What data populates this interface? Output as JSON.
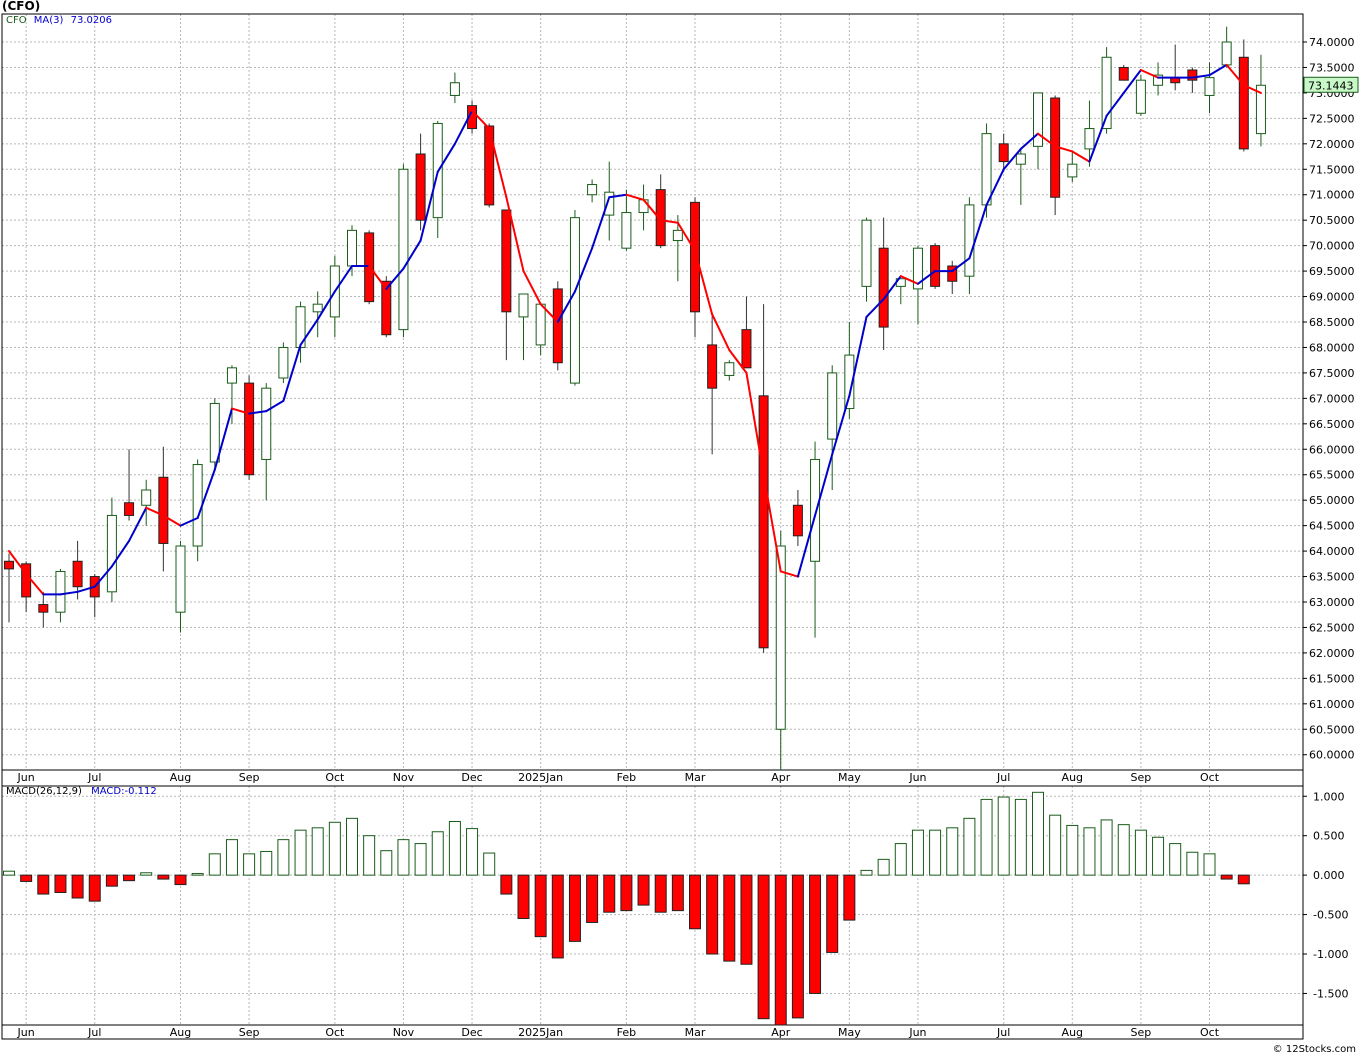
{
  "ticker_title": "(CFO)",
  "credit": "© 12Stocks.com",
  "colors": {
    "up": "#1a5c1a",
    "down": "#ff0000",
    "ma_up": "#0000cc",
    "ma_down": "#ff0000",
    "grid": "#b8b8b8"
  },
  "price_legend": {
    "symbol": "CFO",
    "ma_label": "MA(3)",
    "ma_value": "73.0206"
  },
  "macd_legend": {
    "label": "MACD(26,12,9)",
    "value_label": "MACD:-0.112"
  },
  "last_price_label": "73.1443",
  "chart_data": [
    {
      "type": "candlestick",
      "id": "price",
      "ylim": [
        59.7,
        74.55
      ],
      "y_ticks": [
        "74.0000",
        "73.5000",
        "73.0000",
        "72.5000",
        "72.0000",
        "71.5000",
        "71.0000",
        "70.5000",
        "70.0000",
        "69.5000",
        "69.0000",
        "68.5000",
        "68.0000",
        "67.5000",
        "67.0000",
        "66.5000",
        "66.0000",
        "65.5000",
        "65.0000",
        "64.5000",
        "64.0000",
        "63.5000",
        "63.0000",
        "62.5000",
        "62.0000",
        "61.5000",
        "61.0000",
        "60.5000",
        "60.0000"
      ],
      "x_labels": [
        {
          "label": "Jun",
          "index": 1
        },
        {
          "label": "Jul",
          "index": 5
        },
        {
          "label": "Aug",
          "index": 10
        },
        {
          "label": "Sep",
          "index": 14
        },
        {
          "label": "Oct",
          "index": 19
        },
        {
          "label": "Nov",
          "index": 23
        },
        {
          "label": "Dec",
          "index": 27
        },
        {
          "label": "2025Jan",
          "index": 31
        },
        {
          "label": "Feb",
          "index": 36
        },
        {
          "label": "Mar",
          "index": 40
        },
        {
          "label": "Apr",
          "index": 45
        },
        {
          "label": "May",
          "index": 49
        },
        {
          "label": "Jun",
          "index": 53
        },
        {
          "label": "Jul",
          "index": 58
        },
        {
          "label": "Aug",
          "index": 62
        },
        {
          "label": "Sep",
          "index": 66
        },
        {
          "label": "Oct",
          "index": 70
        }
      ],
      "candles": [
        {
          "o": 63.8,
          "h": 63.95,
          "l": 62.6,
          "c": 63.65
        },
        {
          "o": 63.75,
          "h": 63.8,
          "l": 62.8,
          "c": 63.1
        },
        {
          "o": 62.95,
          "h": 63.2,
          "l": 62.5,
          "c": 62.8
        },
        {
          "o": 62.8,
          "h": 63.65,
          "l": 62.6,
          "c": 63.6
        },
        {
          "o": 63.8,
          "h": 64.2,
          "l": 63.05,
          "c": 63.3
        },
        {
          "o": 63.5,
          "h": 63.55,
          "l": 62.7,
          "c": 63.1
        },
        {
          "o": 63.2,
          "h": 65.05,
          "l": 63.0,
          "c": 64.7
        },
        {
          "o": 64.95,
          "h": 66.0,
          "l": 64.6,
          "c": 64.7
        },
        {
          "o": 64.9,
          "h": 65.4,
          "l": 64.5,
          "c": 65.2
        },
        {
          "o": 65.45,
          "h": 66.05,
          "l": 63.6,
          "c": 64.15
        },
        {
          "o": 62.8,
          "h": 64.2,
          "l": 62.4,
          "c": 64.1
        },
        {
          "o": 64.1,
          "h": 65.8,
          "l": 63.8,
          "c": 65.7
        },
        {
          "o": 65.75,
          "h": 67.0,
          "l": 65.6,
          "c": 66.9
        },
        {
          "o": 67.3,
          "h": 67.65,
          "l": 66.5,
          "c": 67.6
        },
        {
          "o": 67.3,
          "h": 67.45,
          "l": 65.4,
          "c": 65.5
        },
        {
          "o": 65.8,
          "h": 67.3,
          "l": 65.0,
          "c": 67.2
        },
        {
          "o": 67.4,
          "h": 68.1,
          "l": 67.3,
          "c": 68.0
        },
        {
          "o": 68.0,
          "h": 68.9,
          "l": 67.7,
          "c": 68.8
        },
        {
          "o": 68.7,
          "h": 69.1,
          "l": 68.2,
          "c": 68.85
        },
        {
          "o": 68.6,
          "h": 69.8,
          "l": 68.2,
          "c": 69.6
        },
        {
          "o": 69.6,
          "h": 70.4,
          "l": 69.4,
          "c": 70.3
        },
        {
          "o": 70.25,
          "h": 70.3,
          "l": 68.85,
          "c": 68.9
        },
        {
          "o": 69.3,
          "h": 69.4,
          "l": 68.2,
          "c": 68.25
        },
        {
          "o": 68.35,
          "h": 71.6,
          "l": 68.2,
          "c": 71.5
        },
        {
          "o": 71.8,
          "h": 72.2,
          "l": 70.3,
          "c": 70.5
        },
        {
          "o": 70.55,
          "h": 72.45,
          "l": 70.15,
          "c": 72.4
        },
        {
          "o": 72.95,
          "h": 73.4,
          "l": 72.8,
          "c": 73.2
        },
        {
          "o": 72.75,
          "h": 72.85,
          "l": 72.2,
          "c": 72.3
        },
        {
          "o": 72.35,
          "h": 72.4,
          "l": 70.75,
          "c": 70.8
        },
        {
          "o": 70.7,
          "h": 70.7,
          "l": 67.75,
          "c": 68.7
        },
        {
          "o": 68.6,
          "h": 68.95,
          "l": 67.75,
          "c": 69.05
        },
        {
          "o": 68.05,
          "h": 68.85,
          "l": 67.85,
          "c": 68.85
        },
        {
          "o": 69.15,
          "h": 69.3,
          "l": 67.55,
          "c": 67.7
        },
        {
          "o": 67.3,
          "h": 70.7,
          "l": 67.25,
          "c": 70.55
        },
        {
          "o": 71.0,
          "h": 71.3,
          "l": 70.85,
          "c": 71.2
        },
        {
          "o": 70.6,
          "h": 71.65,
          "l": 70.1,
          "c": 71.05
        },
        {
          "o": 69.95,
          "h": 71.1,
          "l": 69.9,
          "c": 70.65
        },
        {
          "o": 70.65,
          "h": 71.2,
          "l": 70.3,
          "c": 70.9
        },
        {
          "o": 71.1,
          "h": 71.4,
          "l": 69.95,
          "c": 70.0
        },
        {
          "o": 70.1,
          "h": 70.6,
          "l": 69.3,
          "c": 70.3
        },
        {
          "o": 70.85,
          "h": 70.95,
          "l": 68.2,
          "c": 68.7
        },
        {
          "o": 68.05,
          "h": 68.65,
          "l": 65.9,
          "c": 67.2
        },
        {
          "o": 67.45,
          "h": 67.75,
          "l": 67.35,
          "c": 67.7
        },
        {
          "o": 68.35,
          "h": 69.0,
          "l": 67.6,
          "c": 67.6
        },
        {
          "o": 67.05,
          "h": 68.85,
          "l": 62.0,
          "c": 62.1
        },
        {
          "o": 60.5,
          "h": 64.4,
          "l": 59.7,
          "c": 64.1
        },
        {
          "o": 64.9,
          "h": 65.2,
          "l": 64.1,
          "c": 64.3
        },
        {
          "o": 63.8,
          "h": 66.15,
          "l": 62.3,
          "c": 65.8
        },
        {
          "o": 66.2,
          "h": 67.65,
          "l": 65.2,
          "c": 67.5
        },
        {
          "o": 66.8,
          "h": 68.5,
          "l": 66.6,
          "c": 67.85
        },
        {
          "o": 69.2,
          "h": 70.55,
          "l": 68.9,
          "c": 70.5
        },
        {
          "o": 69.95,
          "h": 70.55,
          "l": 67.95,
          "c": 68.4
        },
        {
          "o": 69.2,
          "h": 69.3,
          "l": 68.85,
          "c": 69.35
        },
        {
          "o": 69.15,
          "h": 70.0,
          "l": 68.45,
          "c": 69.95
        },
        {
          "o": 70.0,
          "h": 70.05,
          "l": 69.15,
          "c": 69.2
        },
        {
          "o": 69.6,
          "h": 69.7,
          "l": 69.05,
          "c": 69.3
        },
        {
          "o": 69.4,
          "h": 70.95,
          "l": 69.05,
          "c": 70.8
        },
        {
          "o": 70.8,
          "h": 72.4,
          "l": 70.55,
          "c": 72.2
        },
        {
          "o": 72.0,
          "h": 72.2,
          "l": 71.45,
          "c": 71.65
        },
        {
          "o": 71.6,
          "h": 71.9,
          "l": 70.8,
          "c": 71.8
        },
        {
          "o": 71.95,
          "h": 73.0,
          "l": 71.5,
          "c": 73.0
        },
        {
          "o": 72.9,
          "h": 72.95,
          "l": 70.6,
          "c": 70.95
        },
        {
          "o": 71.35,
          "h": 71.85,
          "l": 71.25,
          "c": 71.6
        },
        {
          "o": 71.9,
          "h": 72.85,
          "l": 71.55,
          "c": 72.3
        },
        {
          "o": 72.3,
          "h": 73.9,
          "l": 72.2,
          "c": 73.7
        },
        {
          "o": 73.5,
          "h": 73.55,
          "l": 73.25,
          "c": 73.25
        },
        {
          "o": 72.6,
          "h": 73.35,
          "l": 72.55,
          "c": 73.25
        },
        {
          "o": 73.15,
          "h": 73.6,
          "l": 72.95,
          "c": 73.35
        },
        {
          "o": 73.3,
          "h": 73.95,
          "l": 73.05,
          "c": 73.2
        },
        {
          "o": 73.45,
          "h": 73.5,
          "l": 73.0,
          "c": 73.25
        },
        {
          "o": 72.95,
          "h": 73.6,
          "l": 72.6,
          "c": 73.3
        },
        {
          "o": 73.55,
          "h": 74.3,
          "l": 73.5,
          "c": 74.0
        },
        {
          "o": 73.7,
          "h": 74.05,
          "l": 71.85,
          "c": 71.9
        },
        {
          "o": 72.2,
          "h": 73.75,
          "l": 71.95,
          "c": 73.15
        }
      ],
      "ma": [
        64.0,
        63.55,
        63.15,
        63.15,
        63.2,
        63.3,
        63.7,
        64.2,
        64.85,
        64.7,
        64.5,
        64.65,
        65.6,
        66.8,
        66.7,
        66.75,
        66.95,
        68.05,
        68.55,
        69.1,
        69.6,
        69.6,
        69.15,
        69.55,
        70.1,
        71.45,
        72.0,
        72.65,
        72.3,
        70.95,
        69.5,
        68.85,
        68.5,
        69.1,
        69.95,
        70.95,
        71.0,
        70.9,
        70.5,
        70.45,
        69.9,
        68.65,
        67.95,
        67.5,
        65.5,
        63.6,
        63.5,
        64.7,
        65.9,
        67.05,
        68.6,
        68.95,
        69.4,
        69.25,
        69.5,
        69.5,
        69.75,
        70.8,
        71.5,
        71.9,
        72.2,
        71.95,
        71.85,
        71.65,
        72.55,
        73.0,
        73.45,
        73.3,
        73.3,
        73.3,
        73.35,
        73.55,
        73.15,
        73.0
      ]
    },
    {
      "type": "bar",
      "id": "macd",
      "ylim": [
        -1.9,
        1.13
      ],
      "y_ticks": [
        "1.000",
        "0.500",
        "0.000",
        "-0.500",
        "-1.000",
        "-1.500"
      ],
      "x_labels": [
        {
          "label": "Jun",
          "index": 1
        },
        {
          "label": "Jul",
          "index": 5
        },
        {
          "label": "Aug",
          "index": 10
        },
        {
          "label": "Sep",
          "index": 14
        },
        {
          "label": "Oct",
          "index": 19
        },
        {
          "label": "Nov",
          "index": 23
        },
        {
          "label": "Dec",
          "index": 27
        },
        {
          "label": "2025Jan",
          "index": 31
        },
        {
          "label": "Feb",
          "index": 36
        },
        {
          "label": "Mar",
          "index": 40
        },
        {
          "label": "Apr",
          "index": 45
        },
        {
          "label": "May",
          "index": 49
        },
        {
          "label": "Jun",
          "index": 53
        },
        {
          "label": "Jul",
          "index": 58
        },
        {
          "label": "Aug",
          "index": 62
        },
        {
          "label": "Sep",
          "index": 66
        },
        {
          "label": "Oct",
          "index": 70
        }
      ],
      "values": [
        0.05,
        -0.08,
        -0.24,
        -0.22,
        -0.29,
        -0.33,
        -0.14,
        -0.07,
        0.03,
        -0.05,
        -0.12,
        0.02,
        0.27,
        0.45,
        0.27,
        0.3,
        0.45,
        0.57,
        0.6,
        0.67,
        0.72,
        0.5,
        0.31,
        0.45,
        0.4,
        0.55,
        0.68,
        0.59,
        0.28,
        -0.24,
        -0.55,
        -0.78,
        -1.05,
        -0.84,
        -0.6,
        -0.47,
        -0.45,
        -0.38,
        -0.47,
        -0.45,
        -0.68,
        -1.0,
        -1.09,
        -1.13,
        -1.82,
        -1.9,
        -1.81,
        -1.5,
        -0.98,
        -0.57,
        0.06,
        0.2,
        0.4,
        0.57,
        0.57,
        0.6,
        0.72,
        0.96,
        0.99,
        0.96,
        1.05,
        0.76,
        0.63,
        0.6,
        0.7,
        0.64,
        0.57,
        0.48,
        0.4,
        0.29,
        0.27,
        -0.05,
        -0.11
      ]
    }
  ]
}
